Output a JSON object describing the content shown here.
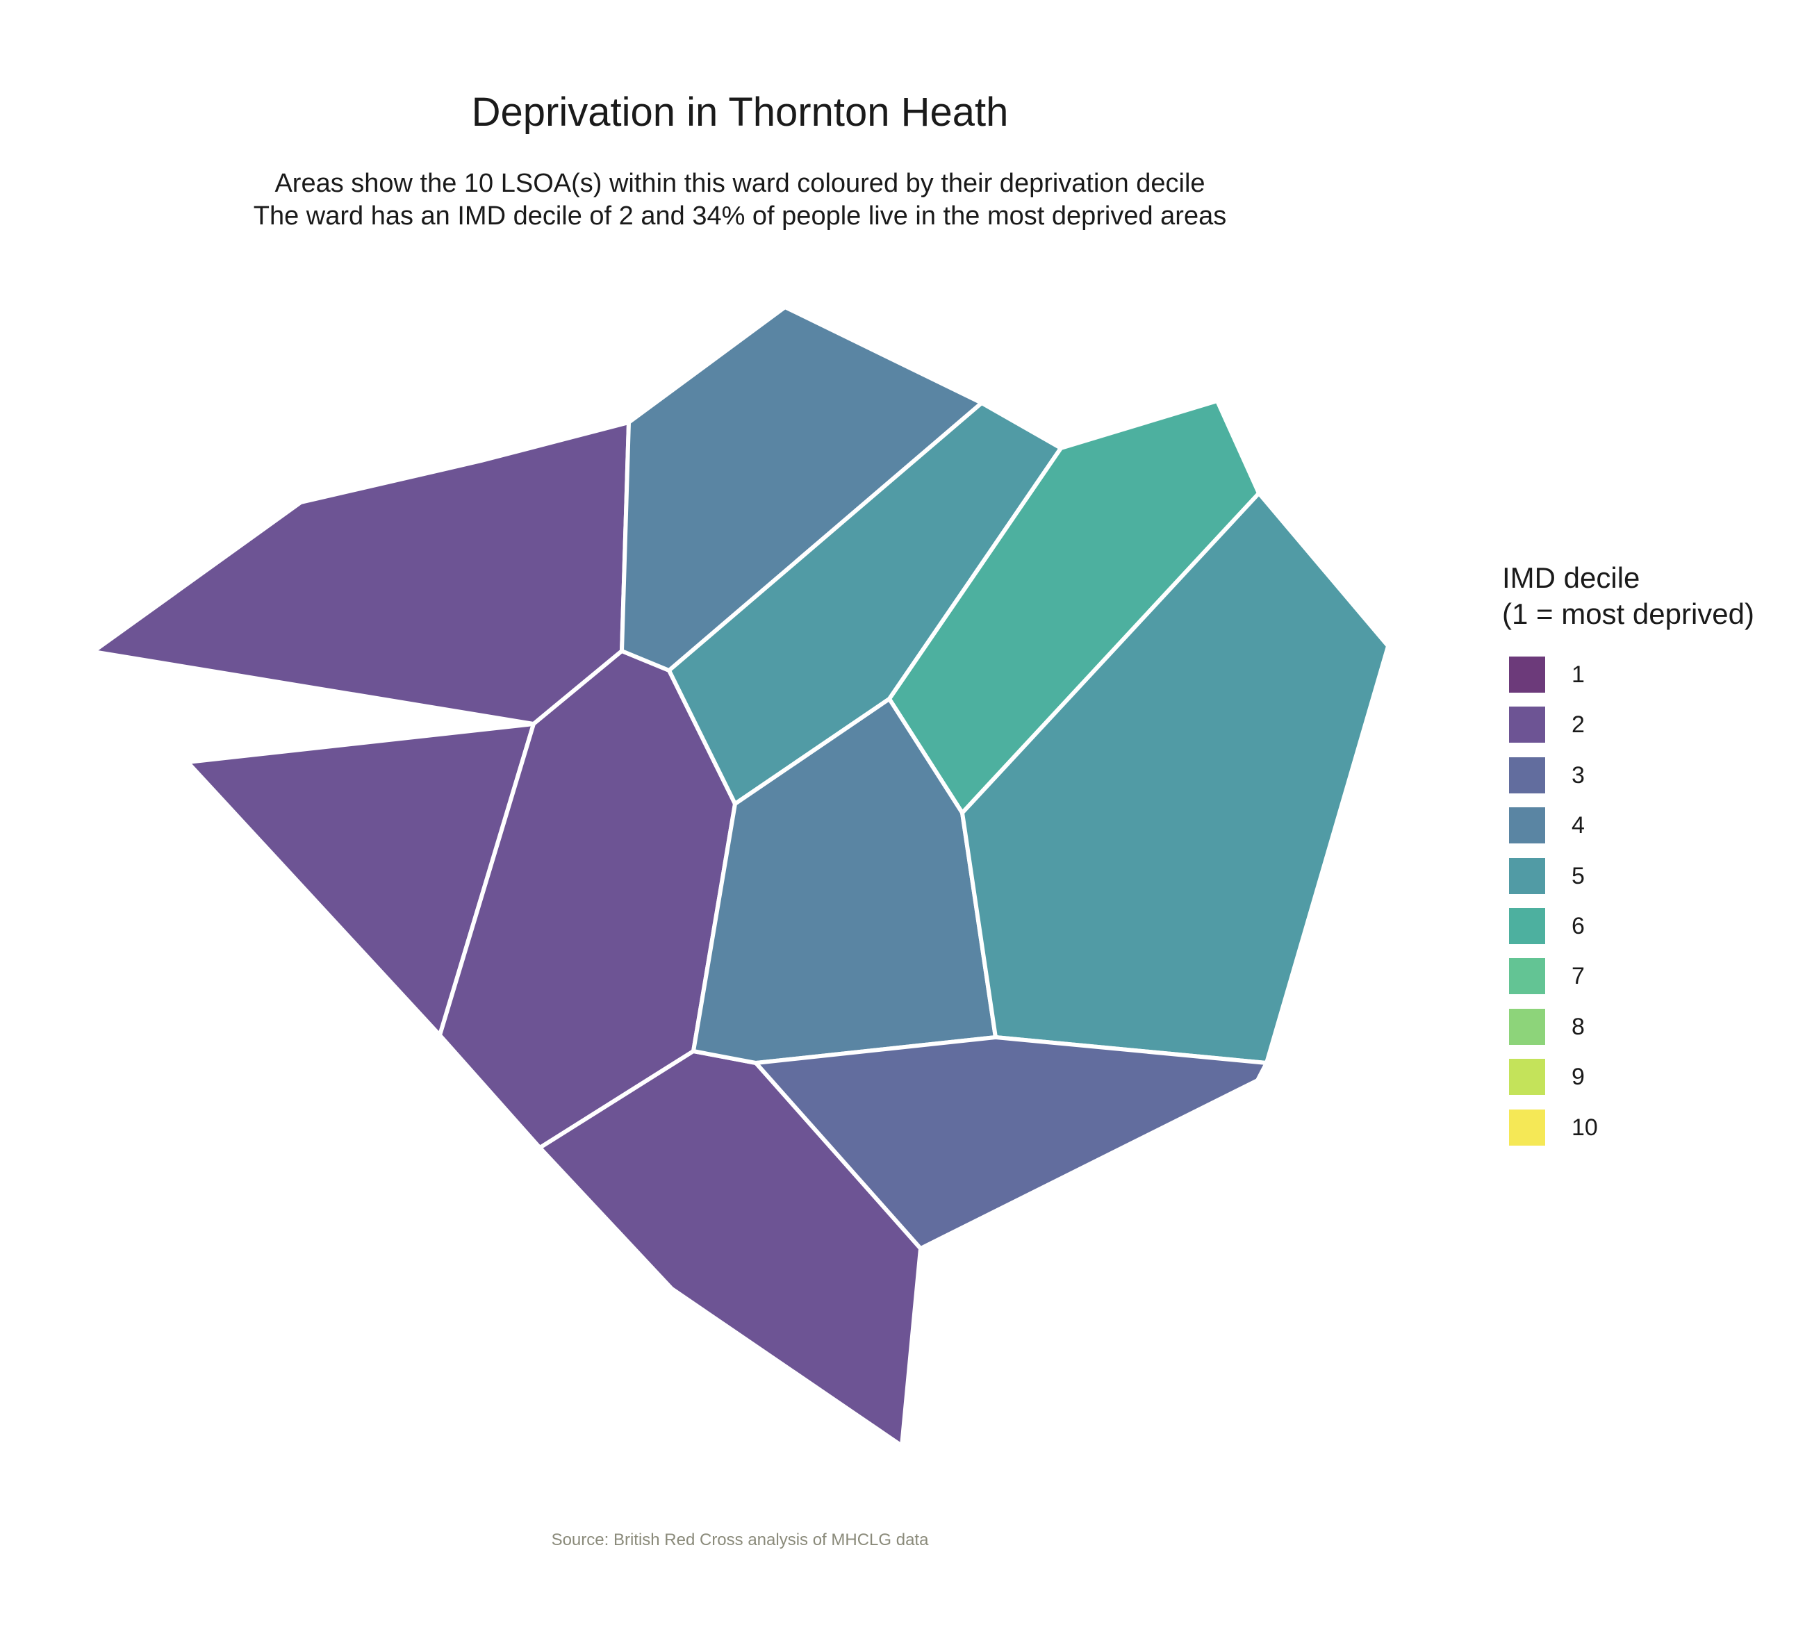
{
  "chart_data": {
    "type": "choropleth",
    "title": "Deprivation in Thornton Heath",
    "subtitle_lines": [
      "Areas show the 10 LSOA(s) within this ward coloured by their deprivation decile",
      "The ward has an IMD decile of 2 and 34% of people live in the most deprived areas"
    ],
    "caption": "Source: British Red Cross analysis of MHCLG data",
    "legend": {
      "title_lines": [
        "IMD decile",
        "(1 = most deprived)"
      ],
      "placement": "right",
      "items": [
        {
          "label": "1",
          "color": "#6C3A7A"
        },
        {
          "label": "2",
          "color": "#6D5494"
        },
        {
          "label": "3",
          "color": "#626D9E"
        },
        {
          "label": "4",
          "color": "#5A85A3"
        },
        {
          "label": "5",
          "color": "#519BA5"
        },
        {
          "label": "6",
          "color": "#4DB09F"
        },
        {
          "label": "7",
          "color": "#63C494"
        },
        {
          "label": "8",
          "color": "#8DD47A"
        },
        {
          "label": "9",
          "color": "#C4E35A"
        },
        {
          "label": "10",
          "color": "#F5E856"
        }
      ]
    },
    "areas": [
      {
        "decile": 2
      },
      {
        "decile": 2
      },
      {
        "decile": 2
      },
      {
        "decile": 2
      },
      {
        "decile": 4
      },
      {
        "decile": 5
      },
      {
        "decile": 6
      },
      {
        "decile": 4
      },
      {
        "decile": 5
      },
      {
        "decile": 3
      }
    ]
  }
}
